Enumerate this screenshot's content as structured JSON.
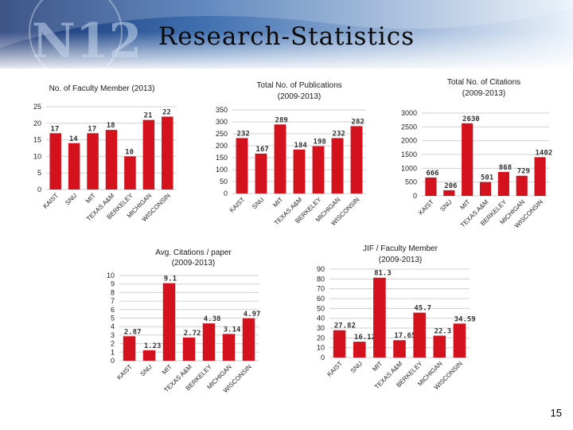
{
  "slide": {
    "title": "Research-Statistics",
    "logo_text": "N12",
    "page_number": "15",
    "bar_color": "#d3121e",
    "banner_colors": [
      "#1c3f8c",
      "#6fa0cf"
    ]
  },
  "chart_data": [
    {
      "type": "bar",
      "title": "No. of Faculty Member (2013)",
      "categories": [
        "KAIST",
        "SNU",
        "MIT",
        "TEXAS A&M",
        "BERKELEY",
        "MICHIGAN",
        "WISCONSIN"
      ],
      "values": [
        17,
        14,
        17,
        18,
        10,
        21,
        22
      ],
      "labels": [
        "17",
        "14",
        "17",
        "18",
        "10",
        "21",
        "22"
      ],
      "ylim": [
        0,
        25
      ],
      "yticks": [
        0,
        5,
        10,
        15,
        20,
        25
      ],
      "grid": true
    },
    {
      "type": "bar",
      "title": "Total No. of Publications",
      "subtitle": "(2009-2013)",
      "categories": [
        "KAIST",
        "SNU",
        "MIT",
        "TEXAS A&M",
        "BERKELEY",
        "MICHIGAN",
        "WISCONSIN"
      ],
      "values": [
        232,
        167,
        289,
        184,
        198,
        232,
        282
      ],
      "labels": [
        "232",
        "167",
        "289",
        "184",
        "198",
        "232",
        "282"
      ],
      "ylim": [
        0,
        350
      ],
      "yticks": [
        0,
        50,
        100,
        150,
        200,
        250,
        300,
        350
      ],
      "grid": true
    },
    {
      "type": "bar",
      "title": "Total No. of Citations",
      "subtitle": "(2009-2013)",
      "categories": [
        "KAIST",
        "SNU",
        "MIT",
        "TEXAS A&M",
        "BERKELEY",
        "MICHIGAN",
        "WISCONSIN"
      ],
      "values": [
        666,
        206,
        2630,
        501,
        868,
        729,
        1402
      ],
      "labels": [
        "666",
        "206",
        "2630",
        "501",
        "868",
        "729",
        "1402"
      ],
      "ylim": [
        0,
        3000
      ],
      "yticks": [
        0,
        500,
        1000,
        1500,
        2000,
        2500,
        3000
      ],
      "grid": true
    },
    {
      "type": "bar",
      "title": "Avg. Citations / paper",
      "subtitle": "(2009-2013)",
      "categories": [
        "KAIST",
        "SNU",
        "MIT",
        "TEXAS A&M",
        "BERKELEY",
        "MICHIGAN",
        "WISCONSIN"
      ],
      "values": [
        2.87,
        1.23,
        9.1,
        2.72,
        4.38,
        3.14,
        4.97
      ],
      "labels": [
        "2.87",
        "1.23",
        "9.1",
        "2.72",
        "4.38",
        "3.14",
        "4.97"
      ],
      "ylim": [
        0,
        10
      ],
      "yticks": [
        0,
        1,
        2,
        3,
        4,
        5,
        6,
        7,
        8,
        9,
        10
      ],
      "grid": true
    },
    {
      "type": "bar",
      "title": "JIF / Faculty Member",
      "subtitle": "(2009-2013)",
      "categories": [
        "KAIST",
        "SNU",
        "MIT",
        "TEXAS A&M",
        "BERKELEY",
        "MICHIGAN",
        "WISCONSIN"
      ],
      "values": [
        27.82,
        16.12,
        81.3,
        17.65,
        45.7,
        22.3,
        34.59
      ],
      "labels": [
        "27.82",
        "16.12",
        "81.3",
        "17.65",
        "45.7",
        "22.3",
        "34.59"
      ],
      "ylim": [
        0,
        90
      ],
      "yticks": [
        0,
        10,
        20,
        30,
        40,
        50,
        60,
        70,
        80,
        90
      ],
      "grid": true
    }
  ]
}
